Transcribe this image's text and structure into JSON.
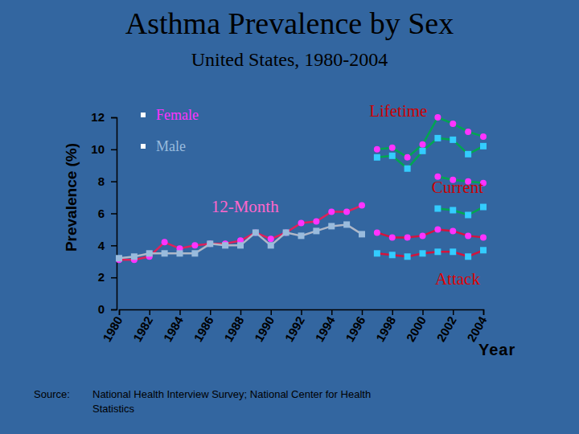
{
  "chart_data": {
    "type": "line",
    "title": "Asthma Prevalence by Sex",
    "subtitle": "United States, 1980-2004",
    "y_label": "Prevalence (%)",
    "x_label": "Year",
    "source_label": "Source:",
    "source": [
      "National Health Interview Survey; National Center for Health",
      "Statistics"
    ],
    "x": [
      1980,
      1981,
      1982,
      1983,
      1984,
      1985,
      1986,
      1987,
      1988,
      1989,
      1990,
      1991,
      1992,
      1993,
      1994,
      1995,
      1996,
      1997,
      1998,
      1999,
      2000,
      2001,
      2002,
      2003,
      2004
    ],
    "xlim": [
      1980,
      2004
    ],
    "xticks": [
      1980,
      1982,
      1984,
      1986,
      1988,
      1990,
      1992,
      1994,
      1996,
      1998,
      2000,
      2002,
      2004
    ],
    "ylim": [
      0,
      12
    ],
    "yticks": [
      0,
      2,
      4,
      6,
      8,
      10,
      12
    ],
    "grid": false,
    "legend": "top-left",
    "annotations": [
      {
        "text": "Lifetime",
        "x": 1998.4,
        "y": 12.3,
        "color": "#cc0000"
      },
      {
        "text": "Current",
        "x": 2002.3,
        "y": 7.5,
        "color": "#cc0000"
      },
      {
        "text": "12-Month",
        "x": 1988.3,
        "y": 6.3,
        "color": "#ff66cc"
      },
      {
        "text": "Attack",
        "x": 2002.3,
        "y": 1.8,
        "color": "#e00000"
      }
    ],
    "series": [
      {
        "name": "Female",
        "color": "#e0205a",
        "marker": "circle",
        "values": [
          3.1,
          3.1,
          3.3,
          4.2,
          3.8,
          4.0,
          4.1,
          4.1,
          4.3,
          4.8,
          4.4,
          4.8,
          5.4,
          5.5,
          6.1,
          6.1,
          6.5,
          null,
          null,
          null,
          null,
          null,
          null,
          null,
          null
        ],
        "colors": [
          "#ff33ff",
          "#ff33ff",
          "#ff33ff",
          "#ff33ff",
          "#ff33ff",
          "#ff33ff",
          "#ff33ff",
          "#ff33ff",
          "#ff33ff",
          "#ff33ff",
          "#ff33ff",
          "#ff33ff",
          "#ff33ff",
          "#ff33ff",
          "#ff33ff",
          "#ff33ff",
          "#ff33ff",
          null,
          null,
          null,
          null,
          null,
          null,
          null,
          null
        ]
      },
      {
        "name": "Male",
        "color": "#b0b8c8",
        "marker": "square",
        "values": [
          3.2,
          3.3,
          3.5,
          3.5,
          3.5,
          3.5,
          4.1,
          4.0,
          4.0,
          4.8,
          4.0,
          4.8,
          4.6,
          4.9,
          5.2,
          5.3,
          4.7,
          null,
          null,
          null,
          null,
          null,
          null,
          null,
          null
        ],
        "colors": [
          "#99bbdd",
          "#99bbdd",
          "#99bbdd",
          "#99bbdd",
          "#99bbdd",
          "#99bbdd",
          "#99bbdd",
          "#99bbdd",
          "#99bbdd",
          "#99bbdd",
          "#99bbdd",
          "#99bbdd",
          "#99bbdd",
          "#99bbdd",
          "#99bbdd",
          "#99bbdd",
          "#99bbdd",
          null,
          null,
          null,
          null,
          null,
          null,
          null,
          null
        ]
      },
      {
        "name": "Female",
        "color": "#00a651",
        "marker": "circle",
        "values": [
          null,
          null,
          null,
          null,
          null,
          null,
          null,
          null,
          null,
          null,
          null,
          null,
          null,
          null,
          null,
          null,
          null,
          10.0,
          10.1,
          9.5,
          10.3,
          12.0,
          11.6,
          11.1,
          10.8
        ],
        "colors": [
          null,
          null,
          null,
          null,
          null,
          null,
          null,
          null,
          null,
          null,
          null,
          null,
          null,
          null,
          null,
          null,
          null,
          "#ff33ff",
          "#ff33ff",
          "#ff33ff",
          "#ff33ff",
          "#ff33ff",
          "#ff33ff",
          "#ff33ff",
          "#ff33ff"
        ]
      },
      {
        "name": "Male",
        "color": "#00a651",
        "marker": "square",
        "values": [
          null,
          null,
          null,
          null,
          null,
          null,
          null,
          null,
          null,
          null,
          null,
          null,
          null,
          null,
          null,
          null,
          null,
          9.5,
          9.6,
          8.8,
          9.9,
          10.7,
          10.6,
          9.7,
          10.2
        ],
        "colors": [
          null,
          null,
          null,
          null,
          null,
          null,
          null,
          null,
          null,
          null,
          null,
          null,
          null,
          null,
          null,
          null,
          null,
          "#33ccff",
          "#33ccff",
          "#33ccff",
          "#33ccff",
          "#33ccff",
          "#33ccff",
          "#33ccff",
          "#33ccff"
        ]
      },
      {
        "name": "Female",
        "color": "#00a651",
        "marker": "circle",
        "values": [
          null,
          null,
          null,
          null,
          null,
          null,
          null,
          null,
          null,
          null,
          null,
          null,
          null,
          null,
          null,
          null,
          null,
          null,
          null,
          null,
          null,
          8.3,
          8.1,
          8.0,
          7.9
        ],
        "colors": [
          null,
          null,
          null,
          null,
          null,
          null,
          null,
          null,
          null,
          null,
          null,
          null,
          null,
          null,
          null,
          null,
          null,
          null,
          null,
          null,
          null,
          "#ff33ff",
          "#ff33ff",
          "#ff33ff",
          "#ff33ff"
        ]
      },
      {
        "name": "Male",
        "color": "#00a651",
        "marker": "square",
        "values": [
          null,
          null,
          null,
          null,
          null,
          null,
          null,
          null,
          null,
          null,
          null,
          null,
          null,
          null,
          null,
          null,
          null,
          null,
          null,
          null,
          null,
          6.3,
          6.2,
          5.9,
          6.4
        ],
        "colors": [
          null,
          null,
          null,
          null,
          null,
          null,
          null,
          null,
          null,
          null,
          null,
          null,
          null,
          null,
          null,
          null,
          null,
          null,
          null,
          null,
          null,
          "#33ccff",
          "#33ccff",
          "#33ccff",
          "#33ccff"
        ]
      },
      {
        "name": "Female",
        "color": "#d4143c",
        "marker": "circle",
        "values": [
          null,
          null,
          null,
          null,
          null,
          null,
          null,
          null,
          null,
          null,
          null,
          null,
          null,
          null,
          null,
          null,
          null,
          4.8,
          4.5,
          4.5,
          4.6,
          5.0,
          4.9,
          4.6,
          4.5
        ],
        "colors": [
          null,
          null,
          null,
          null,
          null,
          null,
          null,
          null,
          null,
          null,
          null,
          null,
          null,
          null,
          null,
          null,
          null,
          "#ff33ff",
          "#ff33ff",
          "#ff33ff",
          "#ff33ff",
          "#ff33ff",
          "#ff33ff",
          "#ff33ff",
          "#ff33ff"
        ]
      },
      {
        "name": "Male",
        "color": "#d4143c",
        "marker": "square",
        "values": [
          null,
          null,
          null,
          null,
          null,
          null,
          null,
          null,
          null,
          null,
          null,
          null,
          null,
          null,
          null,
          null,
          null,
          3.5,
          3.4,
          3.3,
          3.5,
          3.6,
          3.6,
          3.3,
          3.7
        ],
        "colors": [
          null,
          null,
          null,
          null,
          null,
          null,
          null,
          null,
          null,
          null,
          null,
          null,
          null,
          null,
          null,
          null,
          null,
          "#33ccff",
          "#33ccff",
          "#33ccff",
          "#33ccff",
          "#33ccff",
          "#33ccff",
          "#33ccff",
          "#33ccff"
        ]
      }
    ]
  }
}
